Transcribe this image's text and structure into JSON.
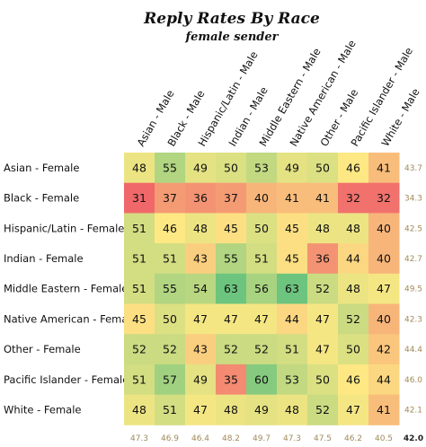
{
  "chart_data": {
    "type": "heatmap",
    "title": "Reply Rates By Race",
    "subtitle": "female sender",
    "columns": [
      "Asian - Male",
      "Black - Male",
      "Hispanic/Latin - Male",
      "Indian - Male",
      "Middle Eastern - Male",
      "Native American - Male",
      "Other - Male",
      "Pacific Islander - Male",
      "White - Male"
    ],
    "rows": [
      "Asian - Female",
      "Black - Female",
      "Hispanic/Latin - Female",
      "Indian - Female",
      "Middle Eastern - Female",
      "Native American - Female",
      "Other - Female",
      "Pacific Islander - Female",
      "White - Female"
    ],
    "values": [
      [
        48,
        55,
        49,
        50,
        53,
        49,
        50,
        46,
        41
      ],
      [
        31,
        37,
        36,
        37,
        40,
        41,
        41,
        32,
        32
      ],
      [
        51,
        46,
        48,
        45,
        50,
        45,
        48,
        48,
        40
      ],
      [
        51,
        51,
        43,
        55,
        51,
        45,
        36,
        44,
        40
      ],
      [
        51,
        55,
        54,
        63,
        56,
        63,
        52,
        48,
        47
      ],
      [
        45,
        50,
        47,
        47,
        47,
        44,
        47,
        52,
        40
      ],
      [
        52,
        52,
        43,
        52,
        52,
        51,
        47,
        50,
        42
      ],
      [
        51,
        57,
        49,
        35,
        60,
        53,
        50,
        46,
        44
      ],
      [
        48,
        51,
        47,
        48,
        49,
        48,
        52,
        47,
        41
      ]
    ],
    "row_averages": [
      "43.7",
      "34.3",
      "42.5",
      "42.7",
      "49.5",
      "42.3",
      "44.4",
      "46.0",
      "42.1"
    ],
    "column_averages": [
      "47.3",
      "46.9",
      "46.4",
      "48.2",
      "49.7",
      "47.3",
      "47.5",
      "46.2",
      "40.5"
    ],
    "overall_average": "42.0",
    "color_scale": {
      "low": "#f0686a",
      "mid": "#fde884",
      "high": "#6dc47e",
      "domain": [
        31,
        46,
        63
      ]
    }
  }
}
